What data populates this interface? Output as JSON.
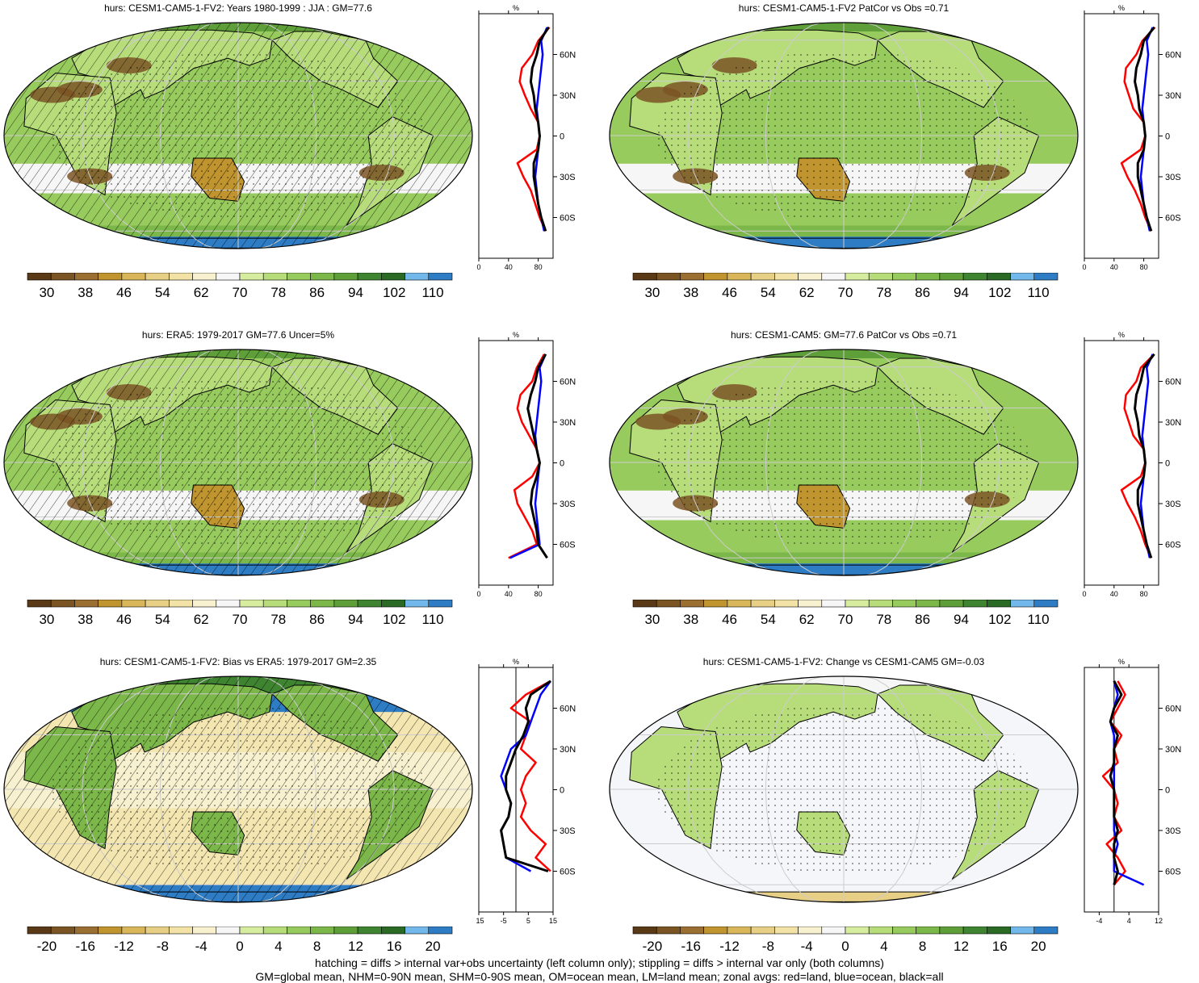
{
  "colors": {
    "scale": [
      "#5a3a16",
      "#7b5424",
      "#9b6e32",
      "#c0942e",
      "#d8b659",
      "#e7cf85",
      "#f2e2a6",
      "#f8f1cf",
      "#f6f6f6",
      "#d6ec9f",
      "#b7dd7b",
      "#98cb5d",
      "#7cb74a",
      "#5e9f3a",
      "#3f8430",
      "#2a6a25",
      "#72b8ea",
      "#2d7cc4"
    ],
    "land": "#ff0000",
    "ocean": "#0000ff",
    "all": "#000000"
  },
  "footer": {
    "line1": "hatching = diffs > internal var+obs uncertainty (left column only); stippling = diffs > internal var only (both columns)",
    "line2": "GM=global mean, NHM=0-90N mean, SHM=0-90S mean, OM=ocean mean, LM=land mean; zonal avgs: red=land, blue=ocean, black=all"
  },
  "chart_data": [
    {
      "type": "heatmap",
      "title": "hurs: CESM1-CAM5-1-FV2: Years 1980-1999 : JJA : GM=77.6",
      "colorbar_labels": [
        "30",
        "38",
        "46",
        "54",
        "62",
        "70",
        "78",
        "86",
        "94",
        "102",
        "110"
      ],
      "profile": {
        "unit": "%",
        "xticks": [
          "0",
          "40",
          "80"
        ],
        "xlim": [
          0,
          100
        ],
        "yticks": [
          "60N",
          "30N",
          "0",
          "30S",
          "60S"
        ],
        "lat": [
          80,
          70,
          60,
          50,
          40,
          30,
          20,
          10,
          0,
          -10,
          -20,
          -30,
          -40,
          -50,
          -60,
          -70
        ],
        "land": [
          95,
          80,
          72,
          58,
          55,
          62,
          70,
          80,
          82,
          78,
          52,
          60,
          70,
          76,
          82,
          90
        ],
        "ocean": [
          92,
          84,
          86,
          84,
          82,
          80,
          78,
          80,
          82,
          80,
          78,
          76,
          78,
          80,
          84,
          88
        ],
        "all": [
          94,
          82,
          78,
          72,
          70,
          74,
          76,
          80,
          82,
          80,
          74,
          74,
          77,
          80,
          84,
          90
        ]
      }
    },
    {
      "type": "heatmap",
      "title": "hurs: CESM1-CAM5-1-FV2 PatCor vs Obs =0.71",
      "colorbar_labels": [
        "30",
        "38",
        "46",
        "54",
        "62",
        "70",
        "78",
        "86",
        "94",
        "102",
        "110"
      ],
      "profile": {
        "unit": "%",
        "xticks": [
          "0",
          "40",
          "80"
        ],
        "xlim": [
          0,
          100
        ],
        "yticks": [
          "60N",
          "30N",
          "0",
          "30S",
          "60S"
        ],
        "lat": [
          80,
          70,
          60,
          50,
          40,
          30,
          20,
          10,
          0,
          -10,
          -20,
          -30,
          -40,
          -50,
          -60,
          -70
        ],
        "land": [
          95,
          78,
          70,
          56,
          54,
          60,
          66,
          80,
          82,
          76,
          50,
          58,
          68,
          76,
          82,
          90
        ],
        "ocean": [
          92,
          84,
          86,
          84,
          82,
          80,
          78,
          80,
          82,
          80,
          78,
          76,
          78,
          80,
          84,
          88
        ],
        "all": [
          94,
          80,
          76,
          70,
          68,
          72,
          74,
          80,
          82,
          80,
          72,
          72,
          76,
          80,
          84,
          90
        ]
      }
    },
    {
      "type": "heatmap",
      "title": "hurs: ERA5: 1979-2017 GM=77.6 Uncer=5%",
      "colorbar_labels": [
        "30",
        "38",
        "46",
        "54",
        "62",
        "70",
        "78",
        "86",
        "94",
        "102",
        "110"
      ],
      "profile": {
        "unit": "%",
        "xticks": [
          "0",
          "40",
          "80"
        ],
        "xlim": [
          0,
          100
        ],
        "yticks": [
          "60N",
          "30N",
          "0",
          "30S",
          "60S"
        ],
        "lat": [
          80,
          70,
          60,
          50,
          40,
          30,
          20,
          10,
          0,
          -10,
          -20,
          -30,
          -40,
          -50,
          -60,
          -70
        ],
        "land": [
          88,
          78,
          72,
          56,
          52,
          58,
          68,
          78,
          82,
          72,
          48,
          52,
          62,
          72,
          78,
          40
        ],
        "ocean": [
          90,
          82,
          84,
          82,
          80,
          78,
          76,
          78,
          82,
          80,
          78,
          76,
          78,
          80,
          82,
          42
        ],
        "all": [
          90,
          80,
          76,
          70,
          66,
          70,
          74,
          78,
          82,
          78,
          72,
          70,
          74,
          78,
          80,
          92
        ]
      }
    },
    {
      "type": "heatmap",
      "title": "hurs: CESM1-CAM5: GM=77.6 PatCor vs Obs =0.71",
      "colorbar_labels": [
        "30",
        "38",
        "46",
        "54",
        "62",
        "70",
        "78",
        "86",
        "94",
        "102",
        "110"
      ],
      "profile": {
        "unit": "%",
        "xticks": [
          "0",
          "40",
          "80"
        ],
        "xlim": [
          0,
          100
        ],
        "yticks": [
          "60N",
          "30N",
          "0",
          "30S",
          "60S"
        ],
        "lat": [
          80,
          70,
          60,
          50,
          40,
          30,
          20,
          10,
          0,
          -10,
          -20,
          -30,
          -40,
          -50,
          -60,
          -70
        ],
        "land": [
          94,
          76,
          70,
          56,
          54,
          60,
          66,
          80,
          82,
          76,
          50,
          58,
          68,
          76,
          82,
          90
        ],
        "ocean": [
          92,
          84,
          86,
          84,
          82,
          80,
          78,
          80,
          82,
          80,
          78,
          76,
          78,
          80,
          84,
          88
        ],
        "all": [
          94,
          80,
          76,
          70,
          68,
          72,
          74,
          80,
          82,
          80,
          72,
          72,
          76,
          80,
          84,
          90
        ]
      }
    },
    {
      "type": "heatmap",
      "title": "hurs: CESM1-CAM5-1-FV2: Bias vs ERA5: 1979-2017 GM=2.35",
      "colorbar_labels": [
        "-20",
        "-16",
        "-12",
        "-8",
        "-4",
        "0",
        "4",
        "8",
        "12",
        "16",
        "20"
      ],
      "profile": {
        "unit": "%",
        "xticks": [
          "-15",
          "-5",
          "5",
          "15"
        ],
        "xlim": [
          -15,
          15
        ],
        "yticks": [
          "60N",
          "30N",
          "0",
          "30S",
          "60S"
        ],
        "lat": [
          80,
          70,
          60,
          50,
          40,
          30,
          20,
          10,
          0,
          -10,
          -20,
          -30,
          -40,
          -50,
          -60
        ],
        "land": [
          14,
          4,
          -2,
          6,
          4,
          2,
          8,
          4,
          2,
          4,
          2,
          6,
          12,
          8,
          14
        ],
        "ocean": [
          14,
          10,
          8,
          6,
          4,
          -2,
          -4,
          -6,
          -4,
          -2,
          -3,
          -6,
          -5,
          -4,
          6
        ],
        "all": [
          14,
          6,
          4,
          5,
          3,
          0,
          -2,
          -4,
          -4,
          -2,
          -3,
          -6,
          -5,
          -4,
          13
        ]
      }
    },
    {
      "type": "heatmap",
      "title": "hurs: CESM1-CAM5-1-FV2: Change vs CESM1-CAM5 GM=-0.03",
      "colorbar_labels": [
        "-20",
        "-16",
        "-12",
        "-8",
        "-4",
        "0",
        "4",
        "8",
        "12",
        "16",
        "20"
      ],
      "profile": {
        "unit": "%",
        "xticks": [
          "-4",
          "4",
          "12"
        ],
        "xlim": [
          -8,
          12
        ],
        "yticks": [
          "60N",
          "30N",
          "0",
          "30S",
          "60S"
        ],
        "lat": [
          80,
          70,
          60,
          50,
          40,
          30,
          20,
          10,
          0,
          -10,
          -20,
          -30,
          -40,
          -50,
          -60,
          -70
        ],
        "land": [
          1,
          3,
          1,
          -1,
          2,
          0,
          1,
          -3,
          0,
          1,
          0,
          2,
          -2,
          1,
          3,
          0
        ],
        "ocean": [
          0,
          1,
          0,
          -1,
          0,
          0,
          0,
          0,
          0,
          0,
          0,
          0,
          1,
          0,
          0,
          8
        ],
        "all": [
          0,
          2,
          0,
          -1,
          1,
          0,
          0,
          -1,
          0,
          0,
          0,
          1,
          0,
          0,
          1,
          0
        ]
      }
    }
  ]
}
